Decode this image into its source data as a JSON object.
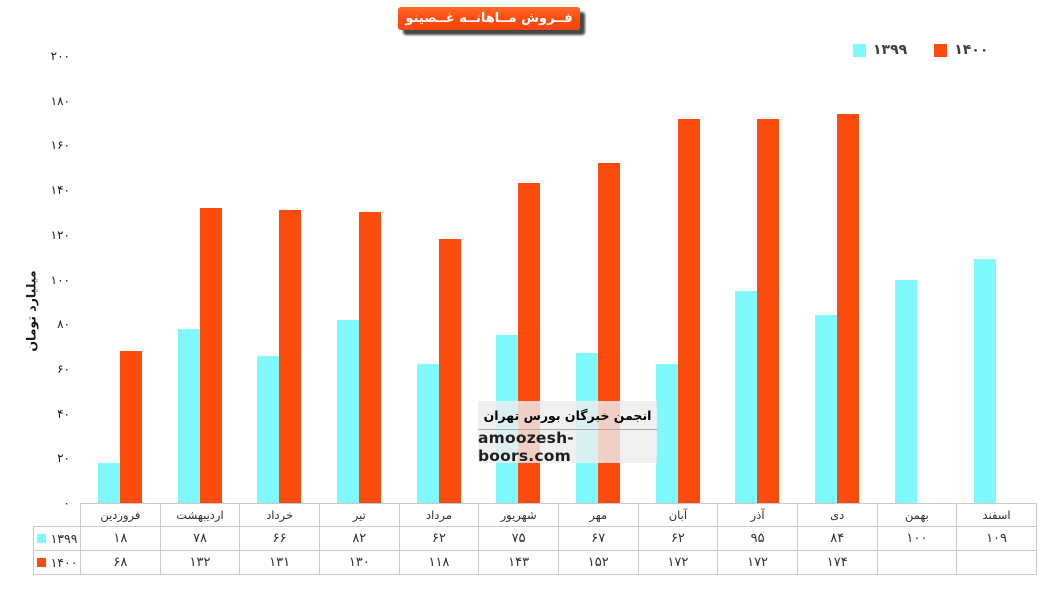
{
  "header": {
    "title": "فــروش مــاهانــه غــصینو"
  },
  "legend": {
    "items": [
      {
        "label": "۱۳۹۹",
        "color": "#7FF9FC"
      },
      {
        "label": "۱۴۰۰",
        "color": "#FB4B0D"
      }
    ]
  },
  "y_axis": {
    "title": "میلیارد تومان"
  },
  "watermark": {
    "line1": "انجمن خبرگان بورس تهران",
    "line2": "amoozesh-boors.com"
  },
  "chart_data": {
    "type": "bar",
    "title": "فروش ماهانه غصینو",
    "ylabel": "میلیارد تومان",
    "ylim": [
      0,
      200
    ],
    "ytick_step": 20,
    "grid": false,
    "legend_position": "top-right",
    "data_table_shown": true,
    "categories": [
      "فروردین",
      "اردیبهشت",
      "خرداد",
      "تیر",
      "مرداد",
      "شهریور",
      "مهر",
      "آبان",
      "آذر",
      "دی",
      "بهمن",
      "اسفند"
    ],
    "series": [
      {
        "name": "۱۳۹۹",
        "color": "#7FF9FC",
        "values": [
          18,
          78,
          66,
          82,
          62,
          75,
          67,
          62,
          95,
          84,
          100,
          109
        ]
      },
      {
        "name": "۱۴۰۰",
        "color": "#FB4B0D",
        "values": [
          68,
          132,
          131,
          130,
          118,
          143,
          152,
          172,
          172,
          174,
          null,
          null
        ]
      }
    ]
  }
}
